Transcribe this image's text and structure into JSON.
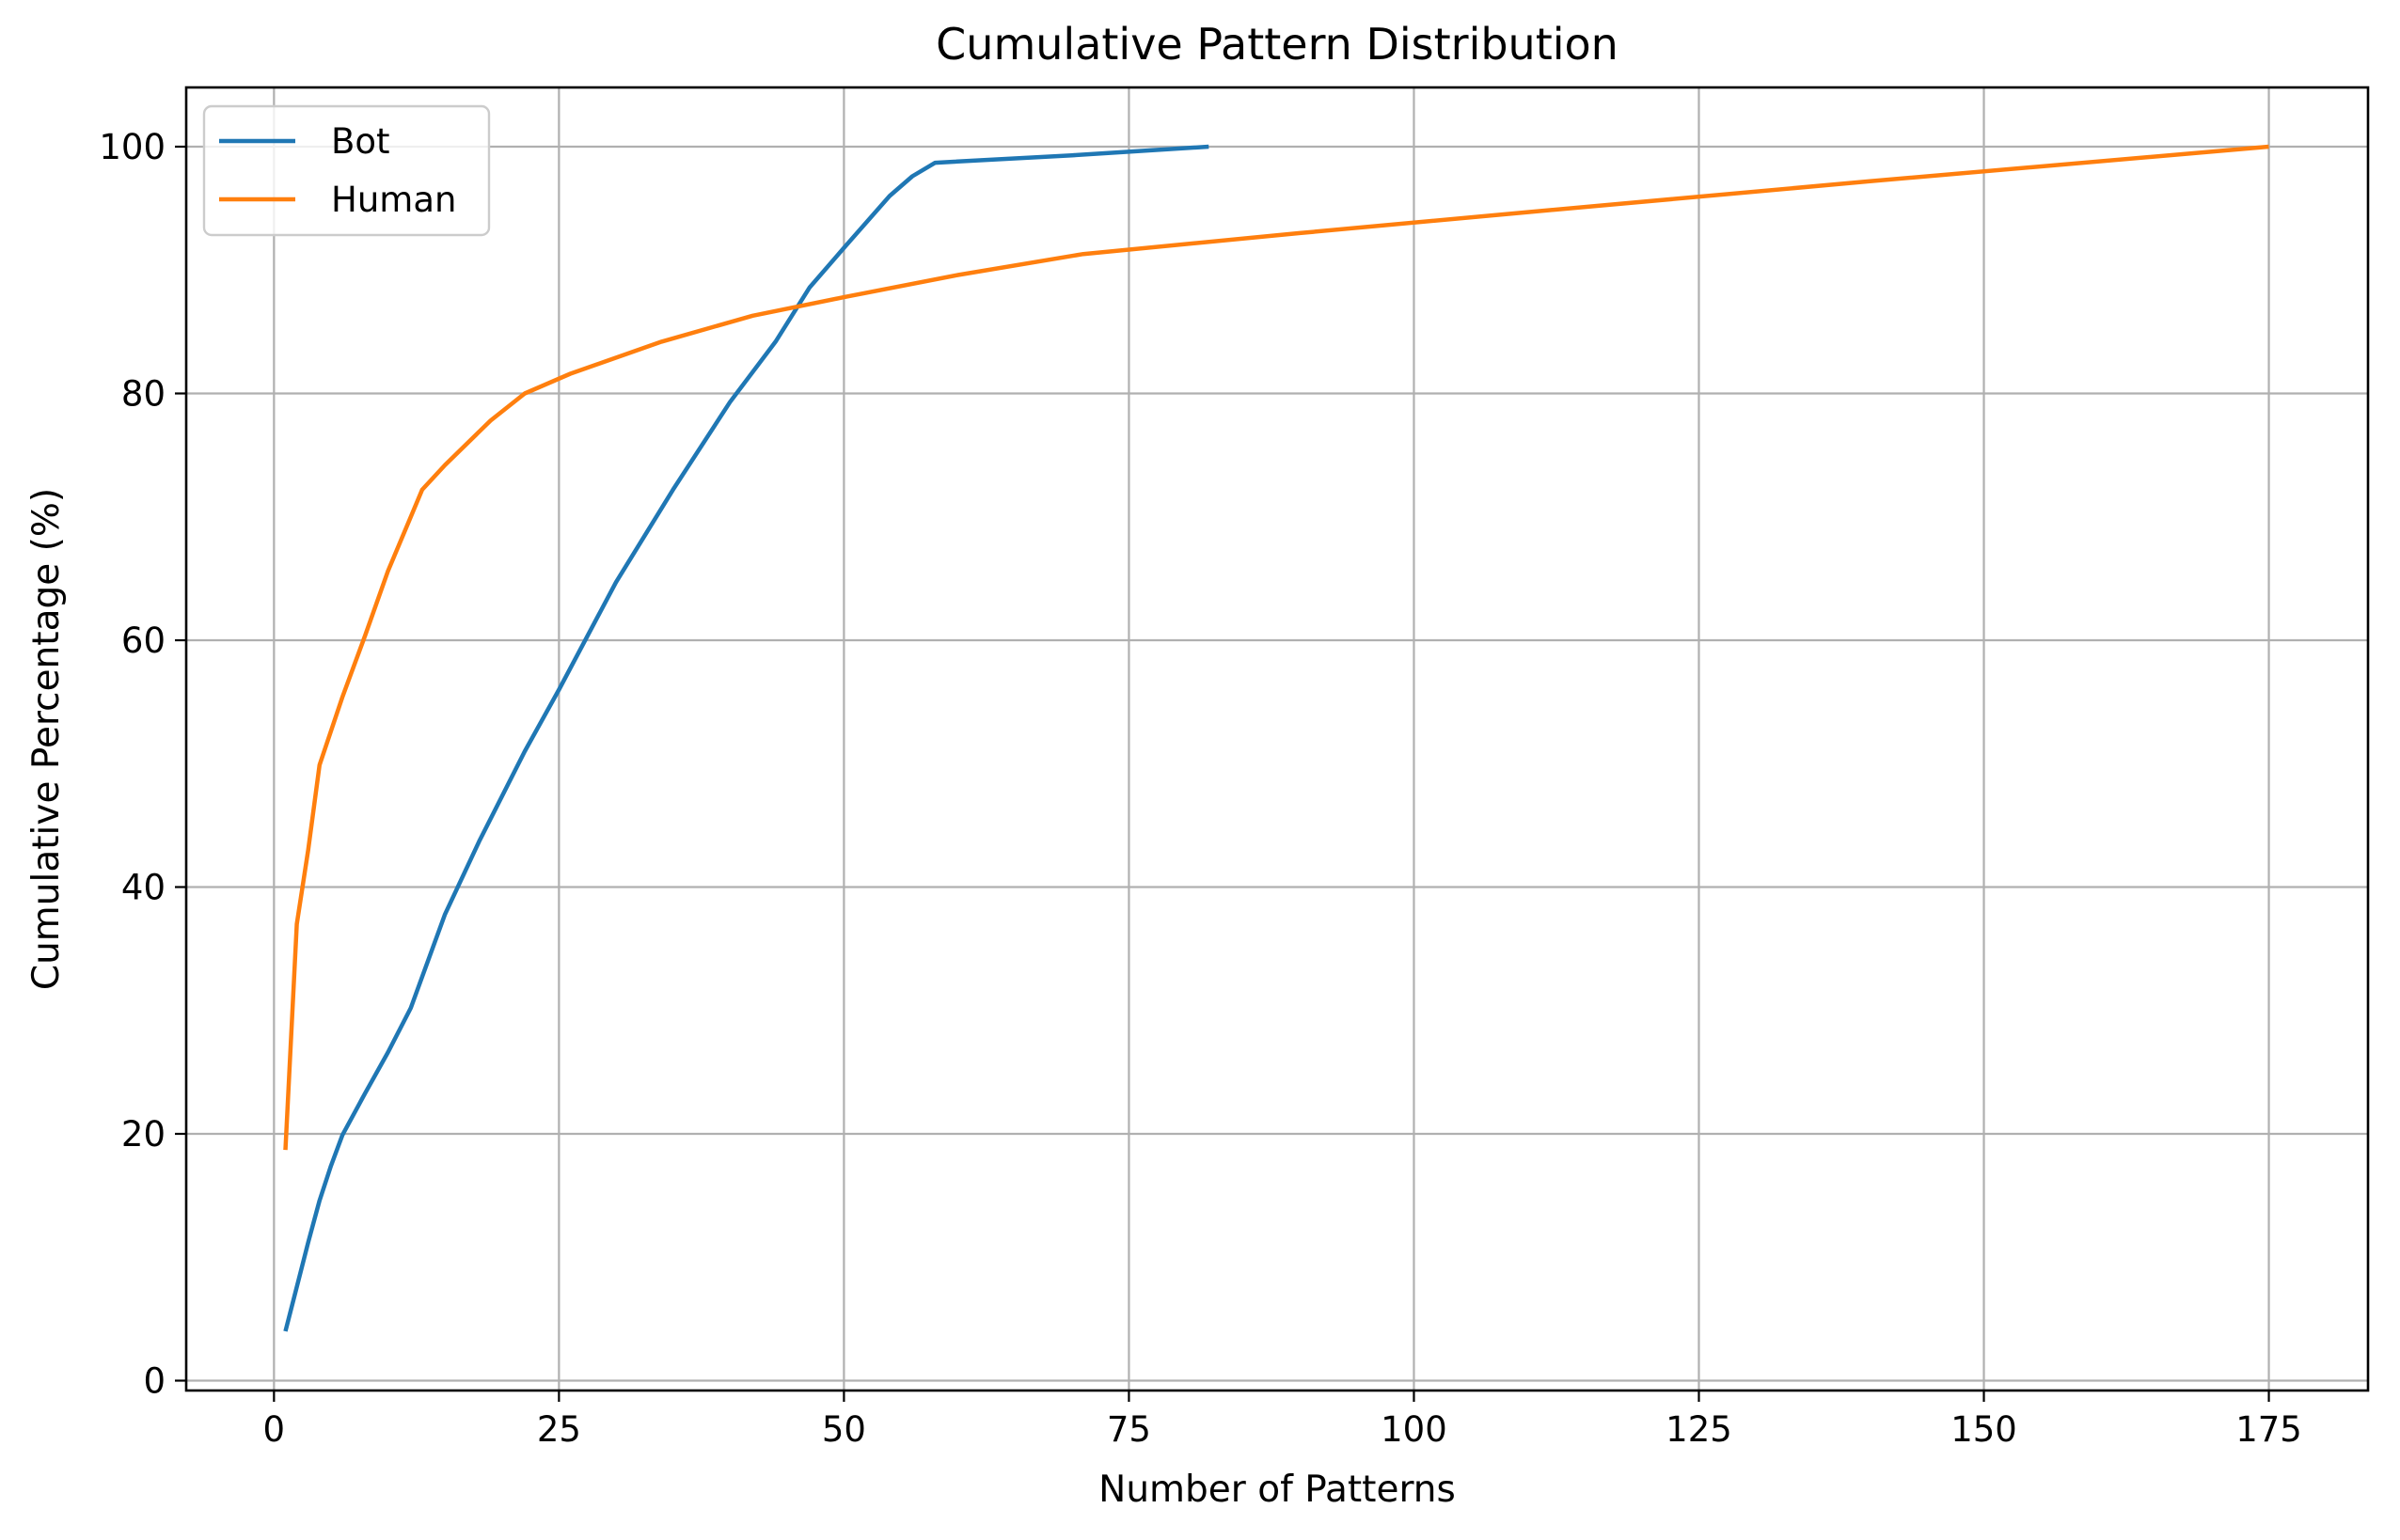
{
  "chart_data": {
    "type": "line",
    "title": "Cumulative Pattern Distribution",
    "xlabel": "Number of Patterns",
    "ylabel": "Cumulative Percentage (%)",
    "xlim": [
      -7.7,
      183.7
    ],
    "ylim": [
      -0.8,
      104.8
    ],
    "xticks": [
      0,
      25,
      50,
      75,
      100,
      125,
      150,
      175
    ],
    "yticks": [
      0,
      20,
      40,
      60,
      80,
      100
    ],
    "grid": true,
    "legend_position": "top-left",
    "series": [
      {
        "name": "Bot",
        "color": "#1f77b4",
        "points": [
          [
            1,
            4
          ],
          [
            2,
            7.6
          ],
          [
            3,
            11.2
          ],
          [
            4,
            14.6
          ],
          [
            5,
            17.4
          ],
          [
            6,
            19.9
          ],
          [
            8,
            23.3
          ],
          [
            10,
            26.6
          ],
          [
            12,
            30.2
          ],
          [
            15,
            37.8
          ],
          [
            18,
            43.7
          ],
          [
            22,
            51.0
          ],
          [
            25,
            56.0
          ],
          [
            30,
            64.7
          ],
          [
            35,
            72.2
          ],
          [
            40,
            79.3
          ],
          [
            44,
            84.2
          ],
          [
            47,
            88.6
          ],
          [
            50,
            91.8
          ],
          [
            54,
            96.0
          ],
          [
            56,
            97.6
          ],
          [
            58,
            98.7
          ],
          [
            70,
            99.3
          ],
          [
            82,
            100
          ]
        ]
      },
      {
        "name": "Human",
        "color": "#ff7f0e",
        "points": [
          [
            1,
            18.7
          ],
          [
            2,
            37.0
          ],
          [
            3,
            43.0
          ],
          [
            4,
            49.9
          ],
          [
            6,
            55.4
          ],
          [
            8,
            60.4
          ],
          [
            10,
            65.6
          ],
          [
            12,
            70.0
          ],
          [
            13,
            72.2
          ],
          [
            15,
            74.2
          ],
          [
            19,
            77.8
          ],
          [
            22,
            80.0
          ],
          [
            26,
            81.6
          ],
          [
            34,
            84.2
          ],
          [
            42,
            86.3
          ],
          [
            50,
            87.8
          ],
          [
            60,
            89.6
          ],
          [
            71,
            91.3
          ],
          [
            90,
            93.0
          ],
          [
            110,
            94.7
          ],
          [
            140,
            97.2
          ],
          [
            175,
            100
          ]
        ]
      }
    ]
  }
}
